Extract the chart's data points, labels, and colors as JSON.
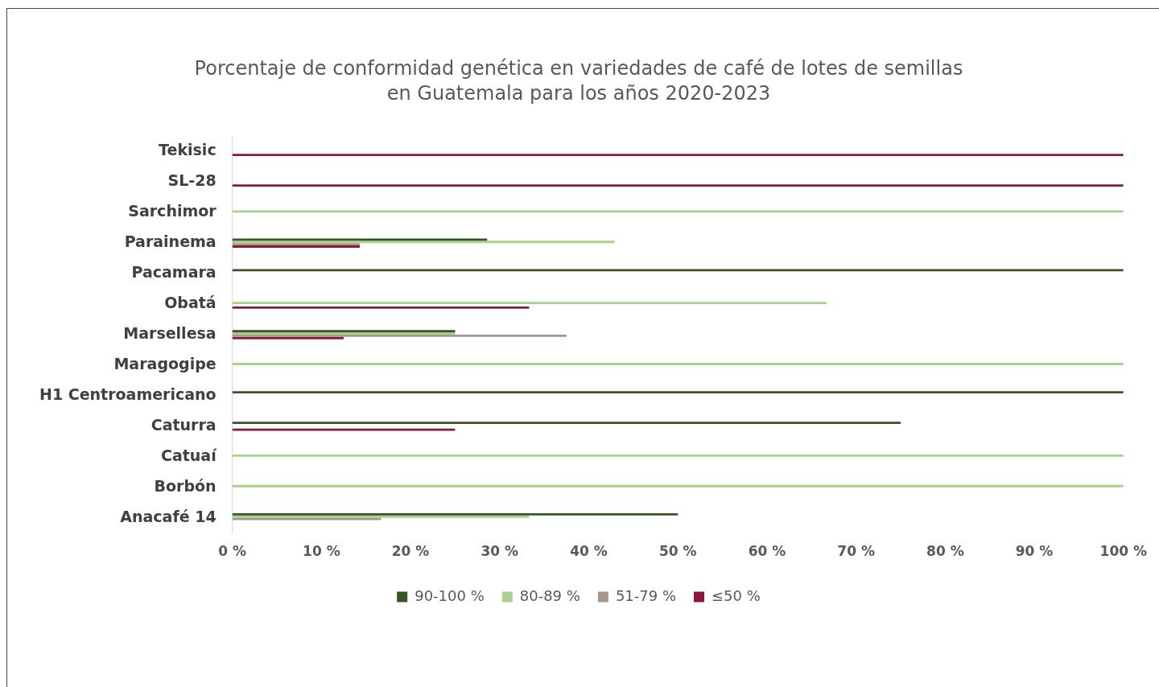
{
  "chart_data": {
    "type": "bar",
    "orientation": "horizontal",
    "title": [
      "Porcentaje de conformidad genética en variedades de café de lotes de semillas",
      "en Guatemala para los años 2020-2023"
    ],
    "categories": [
      "Tekisic",
      "SL-28",
      "Sarchimor",
      "Parainema",
      "Pacamara",
      "Obatá",
      "Marsellesa",
      "Maragogipe",
      "H1 Centroamericano",
      "Caturra",
      "Catuaí",
      "Borbón",
      "Anacafé 14"
    ],
    "series": [
      {
        "name": "90-100 %",
        "color": "#375623",
        "values": [
          null,
          null,
          null,
          28.6,
          100,
          null,
          25,
          null,
          100,
          75,
          null,
          null,
          50
        ]
      },
      {
        "name": "80-89 %",
        "color": "#a9d18e",
        "values": [
          null,
          null,
          100,
          42.9,
          null,
          66.7,
          25,
          100,
          null,
          null,
          100,
          100,
          33.3
        ]
      },
      {
        "name": "51-79 %",
        "color": "#a69886",
        "values": [
          null,
          null,
          null,
          14.3,
          null,
          null,
          37.5,
          null,
          null,
          null,
          null,
          null,
          16.7
        ]
      },
      {
        "name": "≤50 %",
        "color": "#8b1a3a",
        "values": [
          100,
          100,
          null,
          14.3,
          null,
          33.3,
          12.5,
          null,
          null,
          25,
          null,
          null,
          null
        ]
      }
    ],
    "xlim": [
      0,
      100
    ],
    "xticks": [
      {
        "value": 0,
        "label": "0 %"
      },
      {
        "value": 10,
        "label": "10 %"
      },
      {
        "value": 20,
        "label": "20 %"
      },
      {
        "value": 30,
        "label": "30 %"
      },
      {
        "value": 40,
        "label": "40 %"
      },
      {
        "value": 50,
        "label": "50 %"
      },
      {
        "value": 60,
        "label": "60 %"
      },
      {
        "value": 70,
        "label": "70 %"
      },
      {
        "value": 80,
        "label": "80 %"
      },
      {
        "value": 90,
        "label": "90 %"
      },
      {
        "value": 100,
        "label": "100 %"
      }
    ],
    "grid": false,
    "legend": "bottom"
  }
}
